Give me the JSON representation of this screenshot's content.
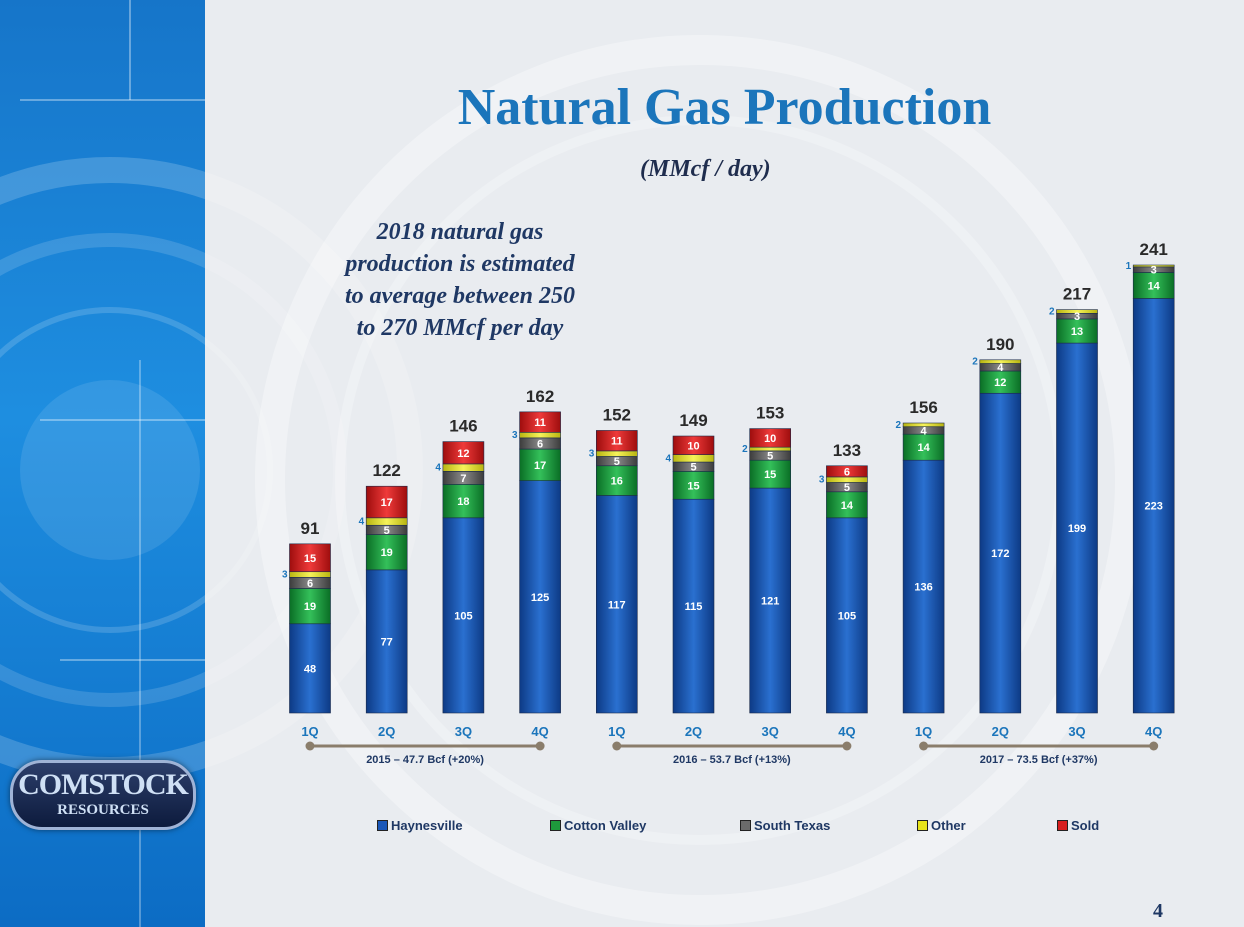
{
  "slide": {
    "title": "Natural Gas Production",
    "subtitle": "(MMcf / day)",
    "callout_lines": [
      "2018 natural gas",
      "production is estimated",
      "to average between 250",
      "to 270 MMcf  per day"
    ],
    "page_number": "4",
    "logo_line1": "COMSTOCK",
    "logo_line2": "RESOURCES"
  },
  "chart_data": {
    "type": "bar",
    "stacked": true,
    "categories": [
      "1Q",
      "2Q",
      "3Q",
      "4Q",
      "1Q",
      "2Q",
      "3Q",
      "4Q",
      "1Q",
      "2Q",
      "3Q",
      "4Q"
    ],
    "series": [
      {
        "name": "Haynesville",
        "color": "#1a57b8",
        "values": [
          48,
          77,
          105,
          125,
          117,
          115,
          121,
          105,
          136,
          172,
          199,
          223
        ]
      },
      {
        "name": "Cotton Valley",
        "color": "#1e9a3c",
        "values": [
          19,
          19,
          18,
          17,
          16,
          15,
          15,
          14,
          14,
          12,
          13,
          14
        ]
      },
      {
        "name": "South Texas",
        "color": "#6b6b6b",
        "values": [
          6,
          5,
          7,
          6,
          5,
          5,
          5,
          5,
          4,
          4,
          3,
          3
        ]
      },
      {
        "name": "Other",
        "color": "#e8e41a",
        "values": [
          3,
          4,
          4,
          3,
          3,
          4,
          2,
          3,
          2,
          2,
          2,
          1
        ]
      },
      {
        "name": "Sold",
        "color": "#d81e1e",
        "values": [
          15,
          17,
          12,
          11,
          11,
          10,
          10,
          6,
          0,
          0,
          0,
          0
        ]
      }
    ],
    "totals": [
      91,
      122,
      146,
      162,
      152,
      149,
      153,
      133,
      156,
      190,
      217,
      241
    ],
    "groups": [
      {
        "label": "2015 – 47.7 Bcf (+20%)",
        "start": 0,
        "end": 3
      },
      {
        "label": "2016 – 53.7 Bcf (+13%)",
        "start": 4,
        "end": 7
      },
      {
        "label": "2017 – 73.5 Bcf (+37%)",
        "start": 8,
        "end": 11
      }
    ],
    "ylim": [
      0,
      241
    ],
    "legend_position": "bottom"
  }
}
